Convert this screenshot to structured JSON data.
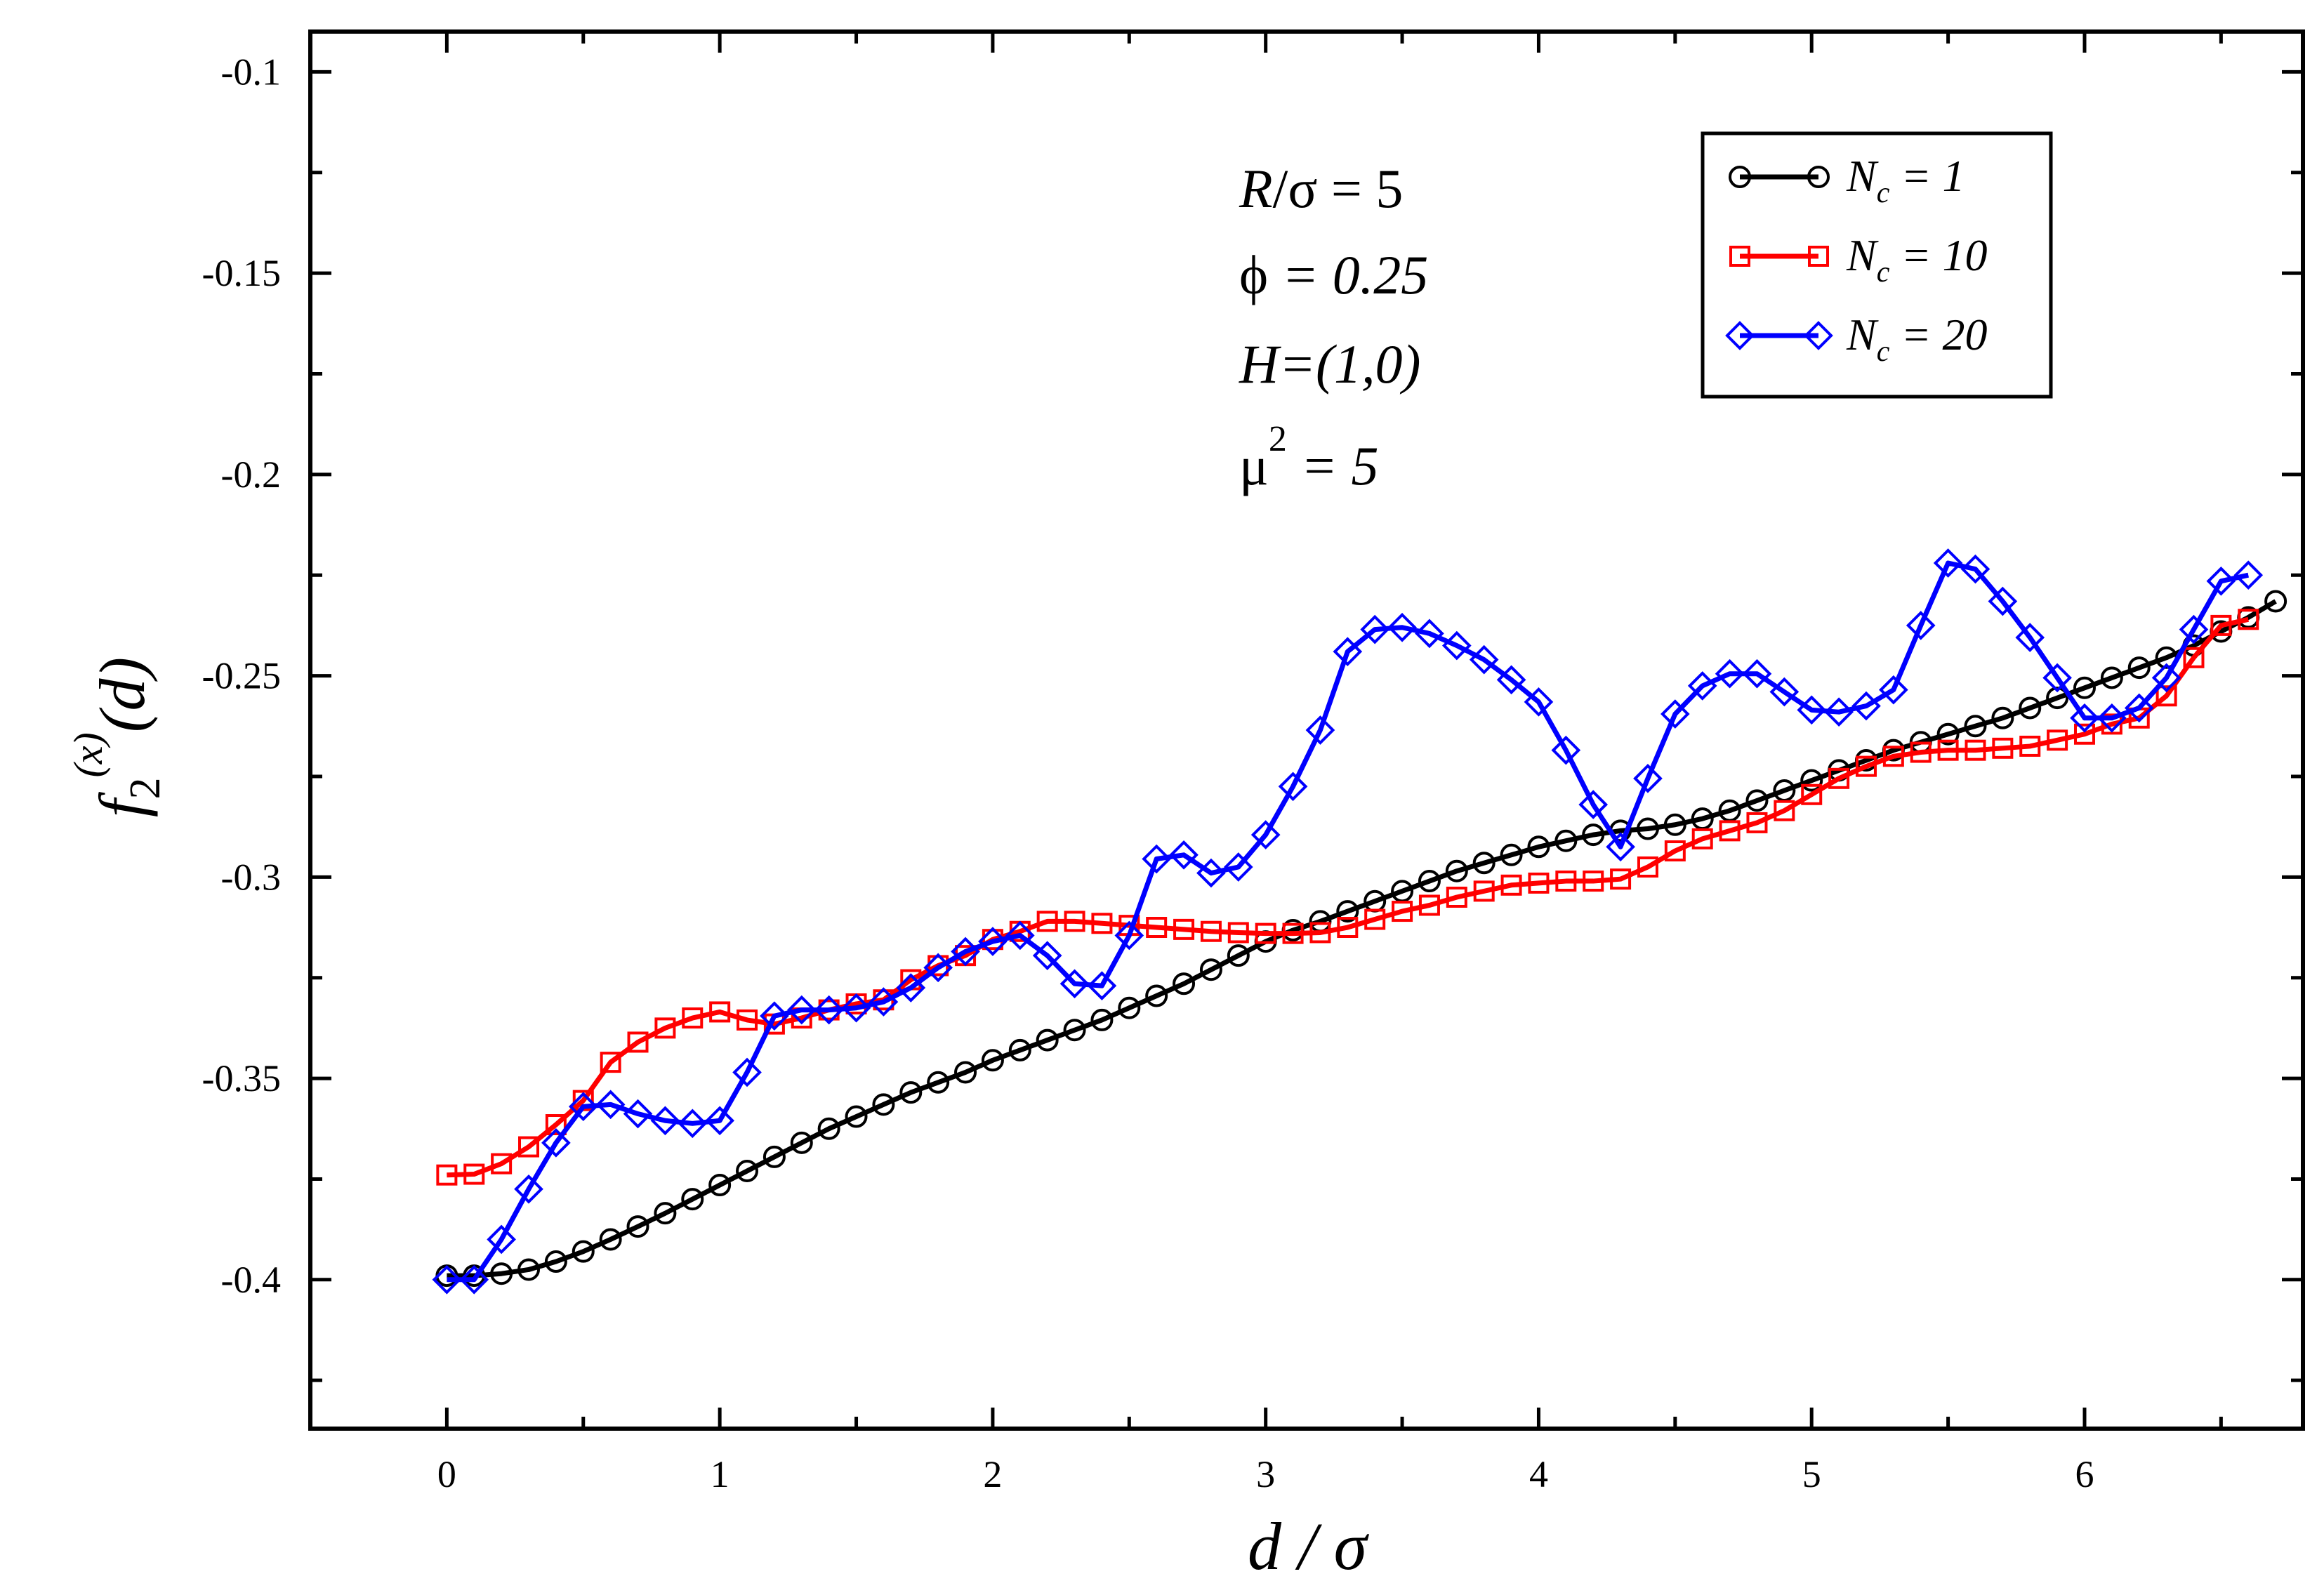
{
  "chart_data": {
    "type": "line",
    "title": "",
    "xlabel": "d / σ",
    "ylabel": "f_2^(x)(d)",
    "xlim": [
      -0.5,
      6.8
    ],
    "ylim": [
      -0.437,
      -0.09
    ],
    "x_ticks": [
      0,
      1,
      2,
      3,
      4,
      5,
      6
    ],
    "x_tick_labels": [
      "0",
      "1",
      "2",
      "3",
      "4",
      "5",
      "6"
    ],
    "y_ticks": [
      -0.4,
      -0.35,
      -0.3,
      -0.25,
      -0.2,
      -0.15,
      -0.1
    ],
    "y_tick_labels": [
      "-0.4",
      "-0.35",
      "-0.3",
      "-0.25",
      "-0.2",
      "-0.15",
      "-0.1"
    ],
    "grid": false,
    "legend_position": "top-right",
    "annotations": [
      "R/σ = 5",
      "ϕ = 0.25",
      "H=(1,0)",
      "μ² = 5"
    ],
    "annotation_parts": {
      "r_sigma": {
        "var": "R",
        "rest": "/σ = 5"
      },
      "phi": {
        "sym": "ϕ",
        "rest": " = 0.25"
      },
      "h": {
        "text": "H=(1,0)"
      },
      "mu": {
        "sym": "μ",
        "sup": "2",
        "rest": " = 5"
      }
    },
    "series": [
      {
        "name": "N_c = 1",
        "legend_main": "N",
        "legend_sub": "c",
        "legend_rest": " = 1",
        "color": "#000000",
        "marker": "circle",
        "x": [
          0.0,
          0.1,
          0.2,
          0.3,
          0.4,
          0.5,
          0.6,
          0.7,
          0.8,
          0.9,
          1.0,
          1.1,
          1.2,
          1.3,
          1.4,
          1.5,
          1.6,
          1.7,
          1.8,
          1.9,
          2.0,
          2.1,
          2.2,
          2.3,
          2.4,
          2.5,
          2.6,
          2.7,
          2.8,
          2.9,
          3.0,
          3.1,
          3.2,
          3.3,
          3.4,
          3.5,
          3.6,
          3.7,
          3.8,
          3.9,
          4.0,
          4.1,
          4.2,
          4.3,
          4.4,
          4.5,
          4.6,
          4.7,
          4.8,
          4.9,
          5.0,
          5.1,
          5.2,
          5.3,
          5.4,
          5.5,
          5.6,
          5.7,
          5.8,
          5.9,
          6.0,
          6.1,
          6.2,
          6.3,
          6.4,
          6.5,
          6.6,
          6.7
        ],
        "y": [
          -0.399,
          -0.399,
          -0.3985,
          -0.3975,
          -0.3955,
          -0.393,
          -0.39,
          -0.3868,
          -0.3835,
          -0.38,
          -0.3765,
          -0.373,
          -0.3695,
          -0.366,
          -0.3625,
          -0.3595,
          -0.3565,
          -0.3535,
          -0.351,
          -0.3485,
          -0.3455,
          -0.343,
          -0.3405,
          -0.338,
          -0.3355,
          -0.3325,
          -0.3295,
          -0.3265,
          -0.323,
          -0.3195,
          -0.316,
          -0.3132,
          -0.311,
          -0.3085,
          -0.306,
          -0.3035,
          -0.301,
          -0.2985,
          -0.2965,
          -0.2945,
          -0.2925,
          -0.291,
          -0.2895,
          -0.2885,
          -0.288,
          -0.287,
          -0.2855,
          -0.2835,
          -0.281,
          -0.2785,
          -0.276,
          -0.2735,
          -0.271,
          -0.2685,
          -0.2665,
          -0.2645,
          -0.2625,
          -0.2605,
          -0.258,
          -0.2555,
          -0.253,
          -0.2505,
          -0.248,
          -0.2455,
          -0.2425,
          -0.239,
          -0.2355,
          -0.2315
        ]
      },
      {
        "name": "N_c = 10",
        "legend_main": "N",
        "legend_sub": "c",
        "legend_rest": " = 10",
        "color": "#ff0000",
        "marker": "square",
        "x": [
          0.0,
          0.1,
          0.2,
          0.3,
          0.4,
          0.5,
          0.6,
          0.7,
          0.8,
          0.9,
          1.0,
          1.1,
          1.2,
          1.3,
          1.4,
          1.5,
          1.6,
          1.7,
          1.8,
          1.9,
          2.0,
          2.1,
          2.2,
          2.3,
          2.4,
          2.5,
          2.6,
          2.7,
          2.8,
          2.9,
          3.0,
          3.1,
          3.2,
          3.3,
          3.4,
          3.5,
          3.6,
          3.7,
          3.8,
          3.9,
          4.0,
          4.1,
          4.2,
          4.3,
          4.4,
          4.5,
          4.6,
          4.7,
          4.8,
          4.9,
          5.0,
          5.1,
          5.2,
          5.3,
          5.4,
          5.5,
          5.6,
          5.7,
          5.8,
          5.9,
          6.0,
          6.1,
          6.2,
          6.3,
          6.4,
          6.5,
          6.6
        ],
        "y": [
          -0.374,
          -0.3738,
          -0.3712,
          -0.367,
          -0.3615,
          -0.3555,
          -0.346,
          -0.341,
          -0.3375,
          -0.335,
          -0.3335,
          -0.3355,
          -0.3365,
          -0.335,
          -0.333,
          -0.3315,
          -0.3305,
          -0.3255,
          -0.322,
          -0.3195,
          -0.3155,
          -0.3135,
          -0.311,
          -0.311,
          -0.3115,
          -0.312,
          -0.3125,
          -0.313,
          -0.3135,
          -0.3138,
          -0.314,
          -0.314,
          -0.3138,
          -0.3125,
          -0.3105,
          -0.3085,
          -0.307,
          -0.305,
          -0.3035,
          -0.302,
          -0.3015,
          -0.301,
          -0.301,
          -0.3005,
          -0.2975,
          -0.2935,
          -0.2905,
          -0.2885,
          -0.2865,
          -0.2835,
          -0.2795,
          -0.2755,
          -0.2725,
          -0.27,
          -0.269,
          -0.2685,
          -0.2685,
          -0.268,
          -0.2675,
          -0.266,
          -0.2645,
          -0.262,
          -0.2605,
          -0.255,
          -0.2455,
          -0.2375,
          -0.236
        ]
      },
      {
        "name": "N_c = 20",
        "legend_main": "N",
        "legend_sub": "c",
        "legend_rest": " = 20",
        "color": "#0000ff",
        "marker": "diamond",
        "x": [
          0.0,
          0.1,
          0.2,
          0.3,
          0.4,
          0.5,
          0.6,
          0.7,
          0.8,
          0.9,
          1.0,
          1.1,
          1.2,
          1.3,
          1.4,
          1.5,
          1.6,
          1.7,
          1.8,
          1.9,
          2.0,
          2.1,
          2.2,
          2.3,
          2.4,
          2.5,
          2.6,
          2.7,
          2.8,
          2.9,
          3.0,
          3.1,
          3.2,
          3.3,
          3.4,
          3.5,
          3.6,
          3.7,
          3.8,
          3.9,
          4.0,
          4.1,
          4.2,
          4.3,
          4.4,
          4.5,
          4.6,
          4.7,
          4.8,
          4.9,
          5.0,
          5.1,
          5.2,
          5.3,
          5.4,
          5.5,
          5.6,
          5.7,
          5.8,
          5.9,
          6.0,
          6.1,
          6.2,
          6.3,
          6.4,
          6.5,
          6.6
        ],
        "y": [
          -0.4,
          -0.4,
          -0.39,
          -0.3775,
          -0.366,
          -0.357,
          -0.3565,
          -0.3588,
          -0.3605,
          -0.3612,
          -0.3605,
          -0.3485,
          -0.3345,
          -0.333,
          -0.333,
          -0.3325,
          -0.331,
          -0.3275,
          -0.3225,
          -0.3185,
          -0.316,
          -0.3145,
          -0.3195,
          -0.3265,
          -0.327,
          -0.3145,
          -0.2955,
          -0.2945,
          -0.299,
          -0.2975,
          -0.2895,
          -0.2775,
          -0.2635,
          -0.244,
          -0.2385,
          -0.238,
          -0.2395,
          -0.2425,
          -0.246,
          -0.251,
          -0.2565,
          -0.2685,
          -0.282,
          -0.2925,
          -0.2755,
          -0.2595,
          -0.2525,
          -0.2495,
          -0.2495,
          -0.254,
          -0.2585,
          -0.259,
          -0.2575,
          -0.2535,
          -0.2375,
          -0.222,
          -0.2235,
          -0.2315,
          -0.2405,
          -0.2505,
          -0.2605,
          -0.2605,
          -0.258,
          -0.2505,
          -0.2385,
          -0.2265,
          -0.225
        ]
      }
    ]
  }
}
